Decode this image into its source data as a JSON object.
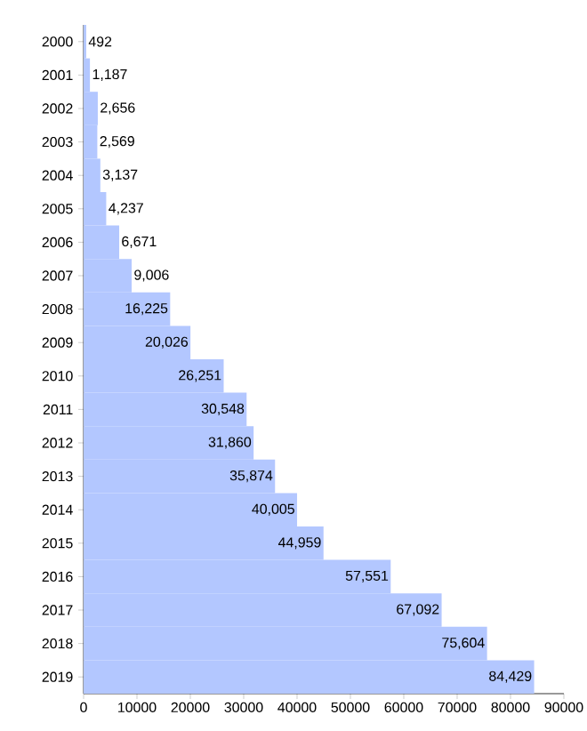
{
  "chart_data": {
    "type": "bar",
    "orientation": "horizontal",
    "categories": [
      "2000",
      "2001",
      "2002",
      "2003",
      "2004",
      "2005",
      "2006",
      "2007",
      "2008",
      "2009",
      "2010",
      "2011",
      "2012",
      "2013",
      "2014",
      "2015",
      "2016",
      "2017",
      "2018",
      "2019"
    ],
    "values": [
      492,
      1187,
      2656,
      2569,
      3137,
      4237,
      6671,
      9006,
      16225,
      20026,
      26251,
      30548,
      31860,
      35874,
      40005,
      44959,
      57551,
      67092,
      75604,
      84429
    ],
    "value_labels": [
      "492",
      "1,187",
      "2,656",
      "2,569",
      "3,137",
      "4,237",
      "6,671",
      "9,006",
      "16,225",
      "20,026",
      "26,251",
      "30,548",
      "31,860",
      "35,874",
      "40,005",
      "44,959",
      "57,551",
      "67,092",
      "75,604",
      "84,429"
    ],
    "color": "#b3c7ff",
    "xlim": [
      0,
      90000
    ],
    "xticks": [
      0,
      10000,
      20000,
      30000,
      40000,
      50000,
      60000,
      70000,
      80000,
      90000
    ]
  }
}
